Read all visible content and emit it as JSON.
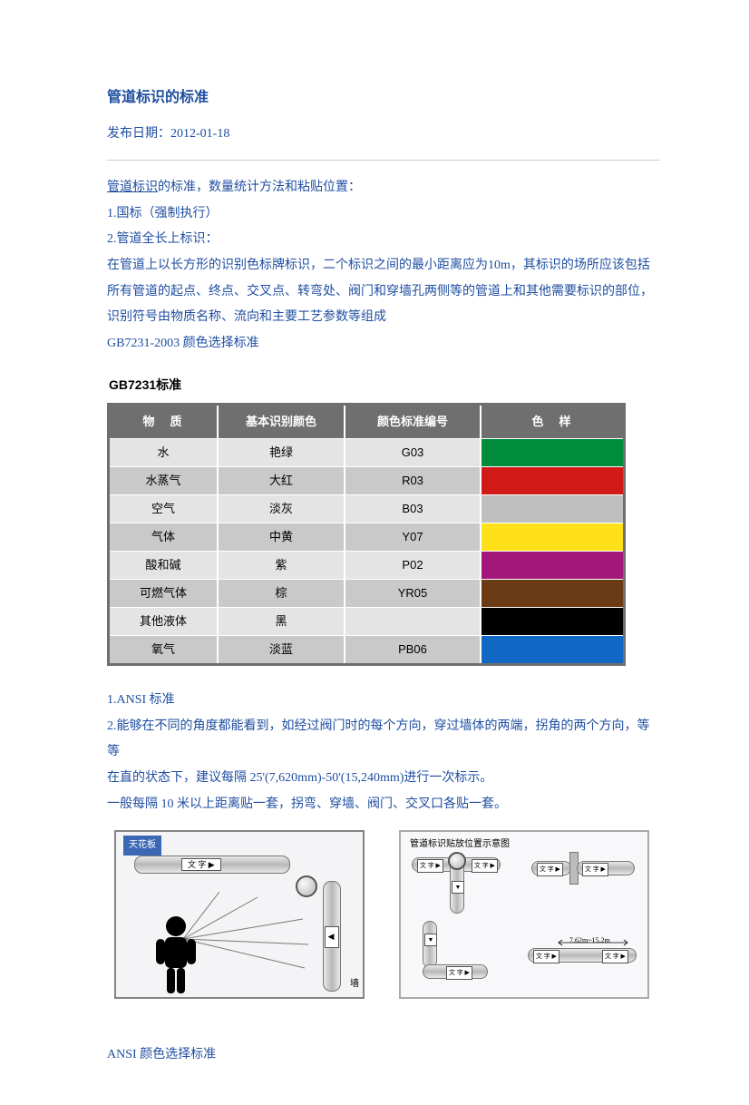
{
  "title": "管道标识的标准",
  "pubdate_label": "发布日期：",
  "pubdate": "2012-01-18",
  "link_text": "管道标识",
  "intro_tail": "的标准，数量统计方法和粘贴位置：",
  "line1": "1.国标（强制执行）",
  "line2": "2.管道全长上标识：",
  "para1": "在管道上以长方形的识别色标牌标识，二个标识之间的最小距离应为10m，其标识的场所应该包括所有管道的起点、终点、交叉点、转弯处、阀门和穿墙孔两侧等的管道上和其他需要标识的部位，识别符号由物质名称、流向和主要工艺参数等组成",
  "gb_std_line": "GB7231-2003 颜色选择标准",
  "gb_table_title": "GB7231标准",
  "gb_headers": [
    "物　质",
    "基本识别颜色",
    "颜色标准编号",
    "色　样"
  ],
  "gb_rows": [
    {
      "material": "水",
      "colorname": "艳绿",
      "code": "G03",
      "swatch": "#008c3a",
      "rowbg": "#e4e4e4"
    },
    {
      "material": "水蒸气",
      "colorname": "大红",
      "code": "R03",
      "swatch": "#d11a17",
      "rowbg": "#c9c9c9"
    },
    {
      "material": "空气",
      "colorname": "淡灰",
      "code": "B03",
      "swatch": "#bfbfbf",
      "rowbg": "#e4e4e4"
    },
    {
      "material": "气体",
      "colorname": "中黄",
      "code": "Y07",
      "swatch": "#ffe11a",
      "rowbg": "#c9c9c9"
    },
    {
      "material": "酸和碱",
      "colorname": "紫",
      "code": "P02",
      "swatch": "#a3177a",
      "rowbg": "#e4e4e4"
    },
    {
      "material": "可燃气体",
      "colorname": "棕",
      "code": "YR05",
      "swatch": "#6b3b16",
      "rowbg": "#c9c9c9"
    },
    {
      "material": "其他液体",
      "colorname": "黑",
      "code": "",
      "swatch": "#000000",
      "rowbg": "#e4e4e4"
    },
    {
      "material": "氧气",
      "colorname": "淡蓝",
      "code": "PB06",
      "swatch": "#1068c4",
      "rowbg": "#c9c9c9"
    }
  ],
  "ansi_line1": "1.ANSI 标准",
  "ansi_line2": "2.能够在不同的角度都能看到，如经过阀门时的每个方向，穿过墙体的两端，拐角的两个方向，等等",
  "ansi_line3": "在直的状态下，建议每隔 25'(7,620mm)-50'(15,240mm)进行一次标示。",
  "ansi_line4": "一般每隔 10 米以上距离贴一套，拐弯、穿墙、阀门、交叉口各贴一套。",
  "left_diagram": {
    "ceiling": "天花板",
    "tag": "文 字",
    "wall": "墙"
  },
  "right_diagram": {
    "title": "管道标识贴放位置示意图",
    "tag": "文 字",
    "spacing": "7.62m~15.2m"
  },
  "footer_line": "ANSI 颜色选择标准",
  "colors": {
    "text": "#1f4ea1",
    "table_header_bg": "#6f6f6f"
  }
}
